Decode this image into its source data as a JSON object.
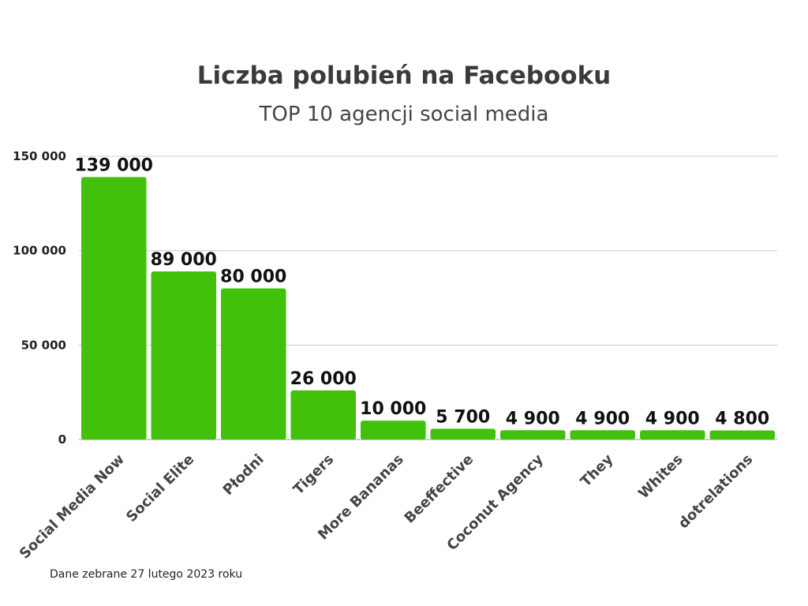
{
  "title": "Liczba polubień na Facebooku",
  "subtitle": "TOP 10 agencji social media",
  "footnote": "Dane zebrane 27 lutego 2023 roku",
  "colors": {
    "bar": "#41c10a",
    "grid": "#cccccc",
    "axis": "#999999"
  },
  "chart_data": {
    "type": "bar",
    "title": "Liczba polubień na Facebooku",
    "subtitle": "TOP 10 agencji social media",
    "categories": [
      "Social Media Now",
      "Social Elite",
      "Płodni",
      "Tigers",
      "More Bananas",
      "Beeffective",
      "Coconut Agency",
      "They",
      "Whites",
      "dotrelations"
    ],
    "values": [
      139000,
      89000,
      80000,
      26000,
      10000,
      5700,
      4900,
      4900,
      4900,
      4800
    ],
    "value_labels": [
      "139 000",
      "89 000",
      "80 000",
      "26 000",
      "10 000",
      "5 700",
      "4 900",
      "4 900",
      "4 900",
      "4 800"
    ],
    "yticks": [
      0,
      50000,
      100000,
      150000
    ],
    "ytick_labels": [
      "0",
      "50 000",
      "100 000",
      "150 000"
    ],
    "ylim": [
      0,
      150000
    ],
    "grid": true,
    "legend": "none"
  }
}
